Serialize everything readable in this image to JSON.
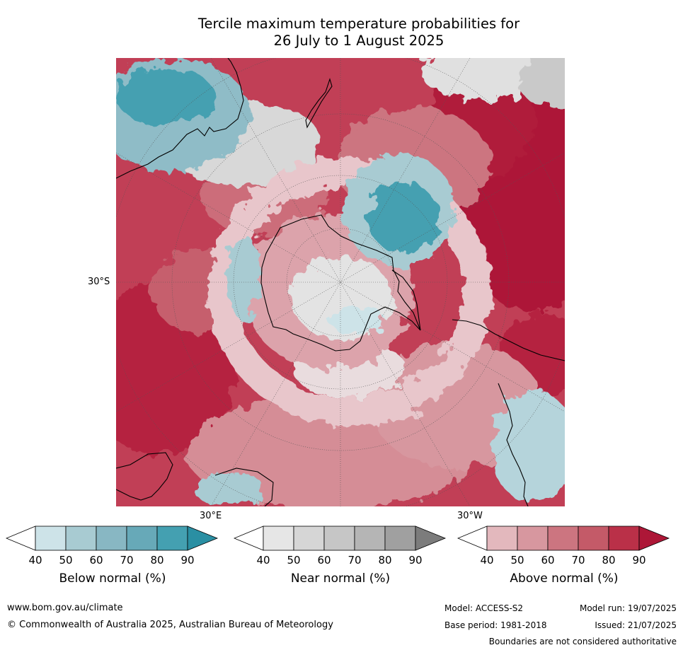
{
  "title_line1": "Tercile maximum temperature probabilities for",
  "title_line2": "26 July to 1 August 2025",
  "axis_labels": {
    "lat_30s": "30°S",
    "lon_30e": "30°E",
    "lon_30w": "30°W"
  },
  "legend": [
    {
      "title": "Below normal (%)",
      "ticks": [
        "40",
        "50",
        "60",
        "70",
        "80",
        "90"
      ],
      "colors": [
        "#ffffff",
        "#cde3e8",
        "#a8cbd2",
        "#88b7c3",
        "#67a9b8",
        "#44a0b1",
        "#2a8fa3"
      ]
    },
    {
      "title": "Near normal (%)",
      "ticks": [
        "40",
        "50",
        "60",
        "70",
        "80",
        "90"
      ],
      "colors": [
        "#ffffff",
        "#e6e6e6",
        "#d6d6d6",
        "#c6c6c6",
        "#b5b5b5",
        "#a0a0a0",
        "#7c7c7c"
      ]
    },
    {
      "title": "Above normal (%)",
      "ticks": [
        "40",
        "50",
        "60",
        "70",
        "80",
        "90"
      ],
      "colors": [
        "#ffffff",
        "#e3b8bd",
        "#d7979f",
        "#cc7580",
        "#c45a68",
        "#ba3048",
        "#ad1737"
      ]
    }
  ],
  "footer": {
    "url": "www.bom.gov.au/climate",
    "copyright": "© Commonwealth of Australia 2025, Australian Bureau of Meteorology",
    "model": "Model: ACCESS-S2",
    "model_run": "Model run: 19/07/2025",
    "base_period": "Base period: 1981-2018",
    "issued": "Issued: 21/07/2025",
    "boundaries": "Boundaries are not considered authoritative"
  }
}
